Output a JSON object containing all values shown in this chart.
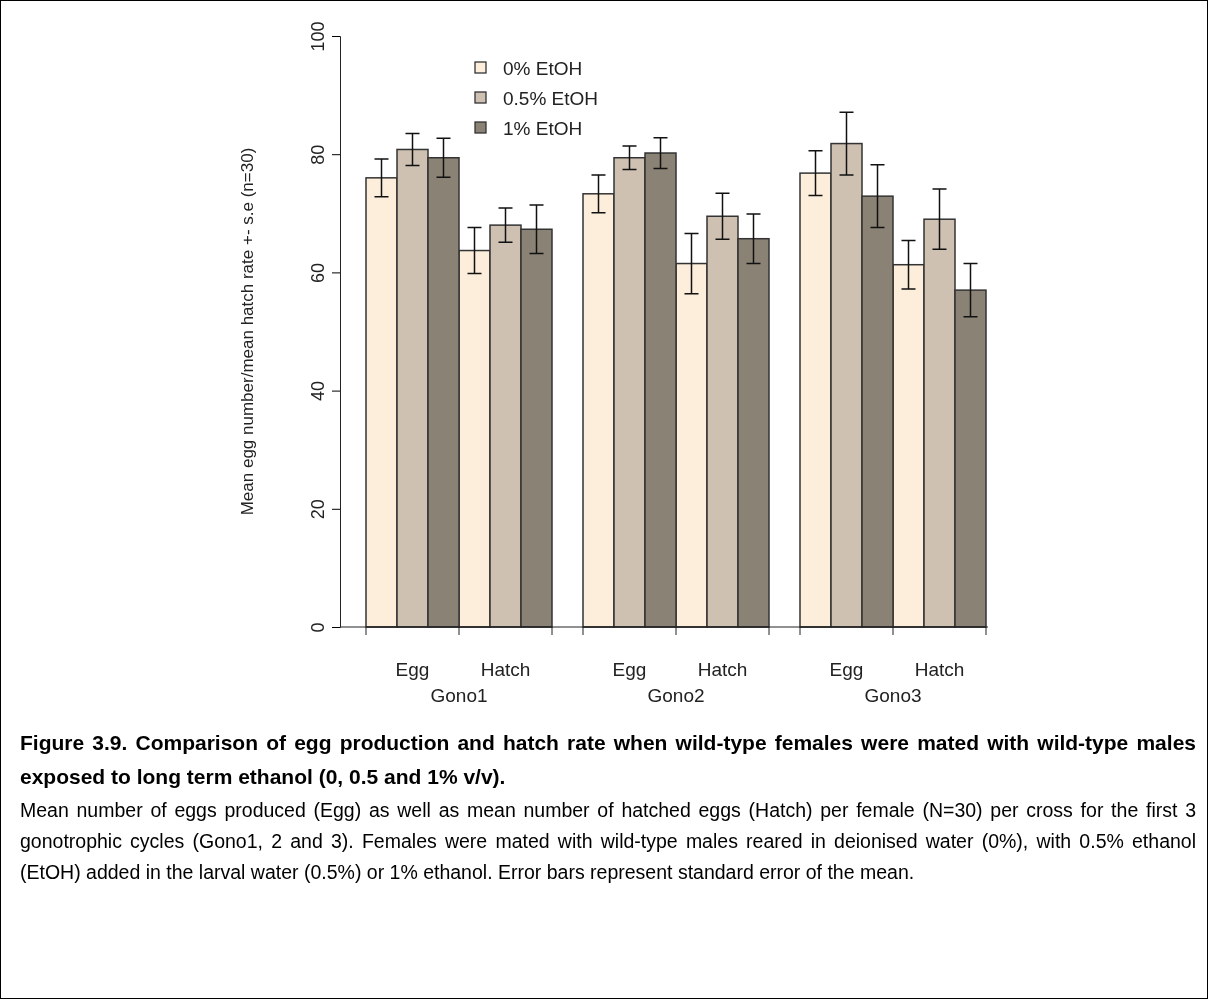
{
  "chart_data": {
    "type": "bar",
    "title": "Figure 3.9. Comparison of egg production and hatch rate when wild-type females were mated with wild-type males exposed to long term ethanol (0, 0.5 and 1% v/v).",
    "ylabel": "Mean egg number/mean hatch rate +- s.e (n=30)",
    "categories": [
      "Egg",
      "Hatch",
      "Egg",
      "Hatch",
      "Egg",
      "Hatch"
    ],
    "series": [
      {
        "name": "0% EtOH",
        "color": "#fdeedb",
        "values": [
          76.0,
          63.7,
          73.3,
          61.5,
          76.8,
          61.3
        ],
        "errors": [
          3.2,
          3.9,
          3.2,
          5.1,
          3.8,
          4.1
        ]
      },
      {
        "name": "0.5% EtOH",
        "color": "#cfc1b2",
        "values": [
          80.8,
          68.0,
          79.4,
          69.5,
          81.8,
          69.0
        ],
        "errors": [
          2.7,
          2.9,
          2.0,
          3.9,
          5.3,
          5.1
        ]
      },
      {
        "name": "1% EtOH",
        "color": "#8b8276",
        "values": [
          79.4,
          67.3,
          80.2,
          65.7,
          72.9,
          57.0
        ],
        "errors": [
          3.3,
          4.1,
          2.6,
          4.2,
          5.3,
          4.5
        ]
      }
    ],
    "ylim": [
      0,
      100
    ],
    "yticks": [
      0,
      20,
      40,
      60,
      80,
      100
    ],
    "legend": "top left",
    "annotations": [
      "Gono1",
      "Gono2",
      "Gono3",
      "Mean number of eggs produced (Egg) as well as mean number of hatched eggs (Hatch) per female (N=30) per cross for the first 3 gonotrophic cycles (Gono1, 2 and 3). Females were mated with wild-type males reared in deionised water (0%), with 0.5% ethanol (EtOH) added in the larval water (0.5%) or 1% ethanol. Error bars represent standard error of the mean."
    ]
  }
}
